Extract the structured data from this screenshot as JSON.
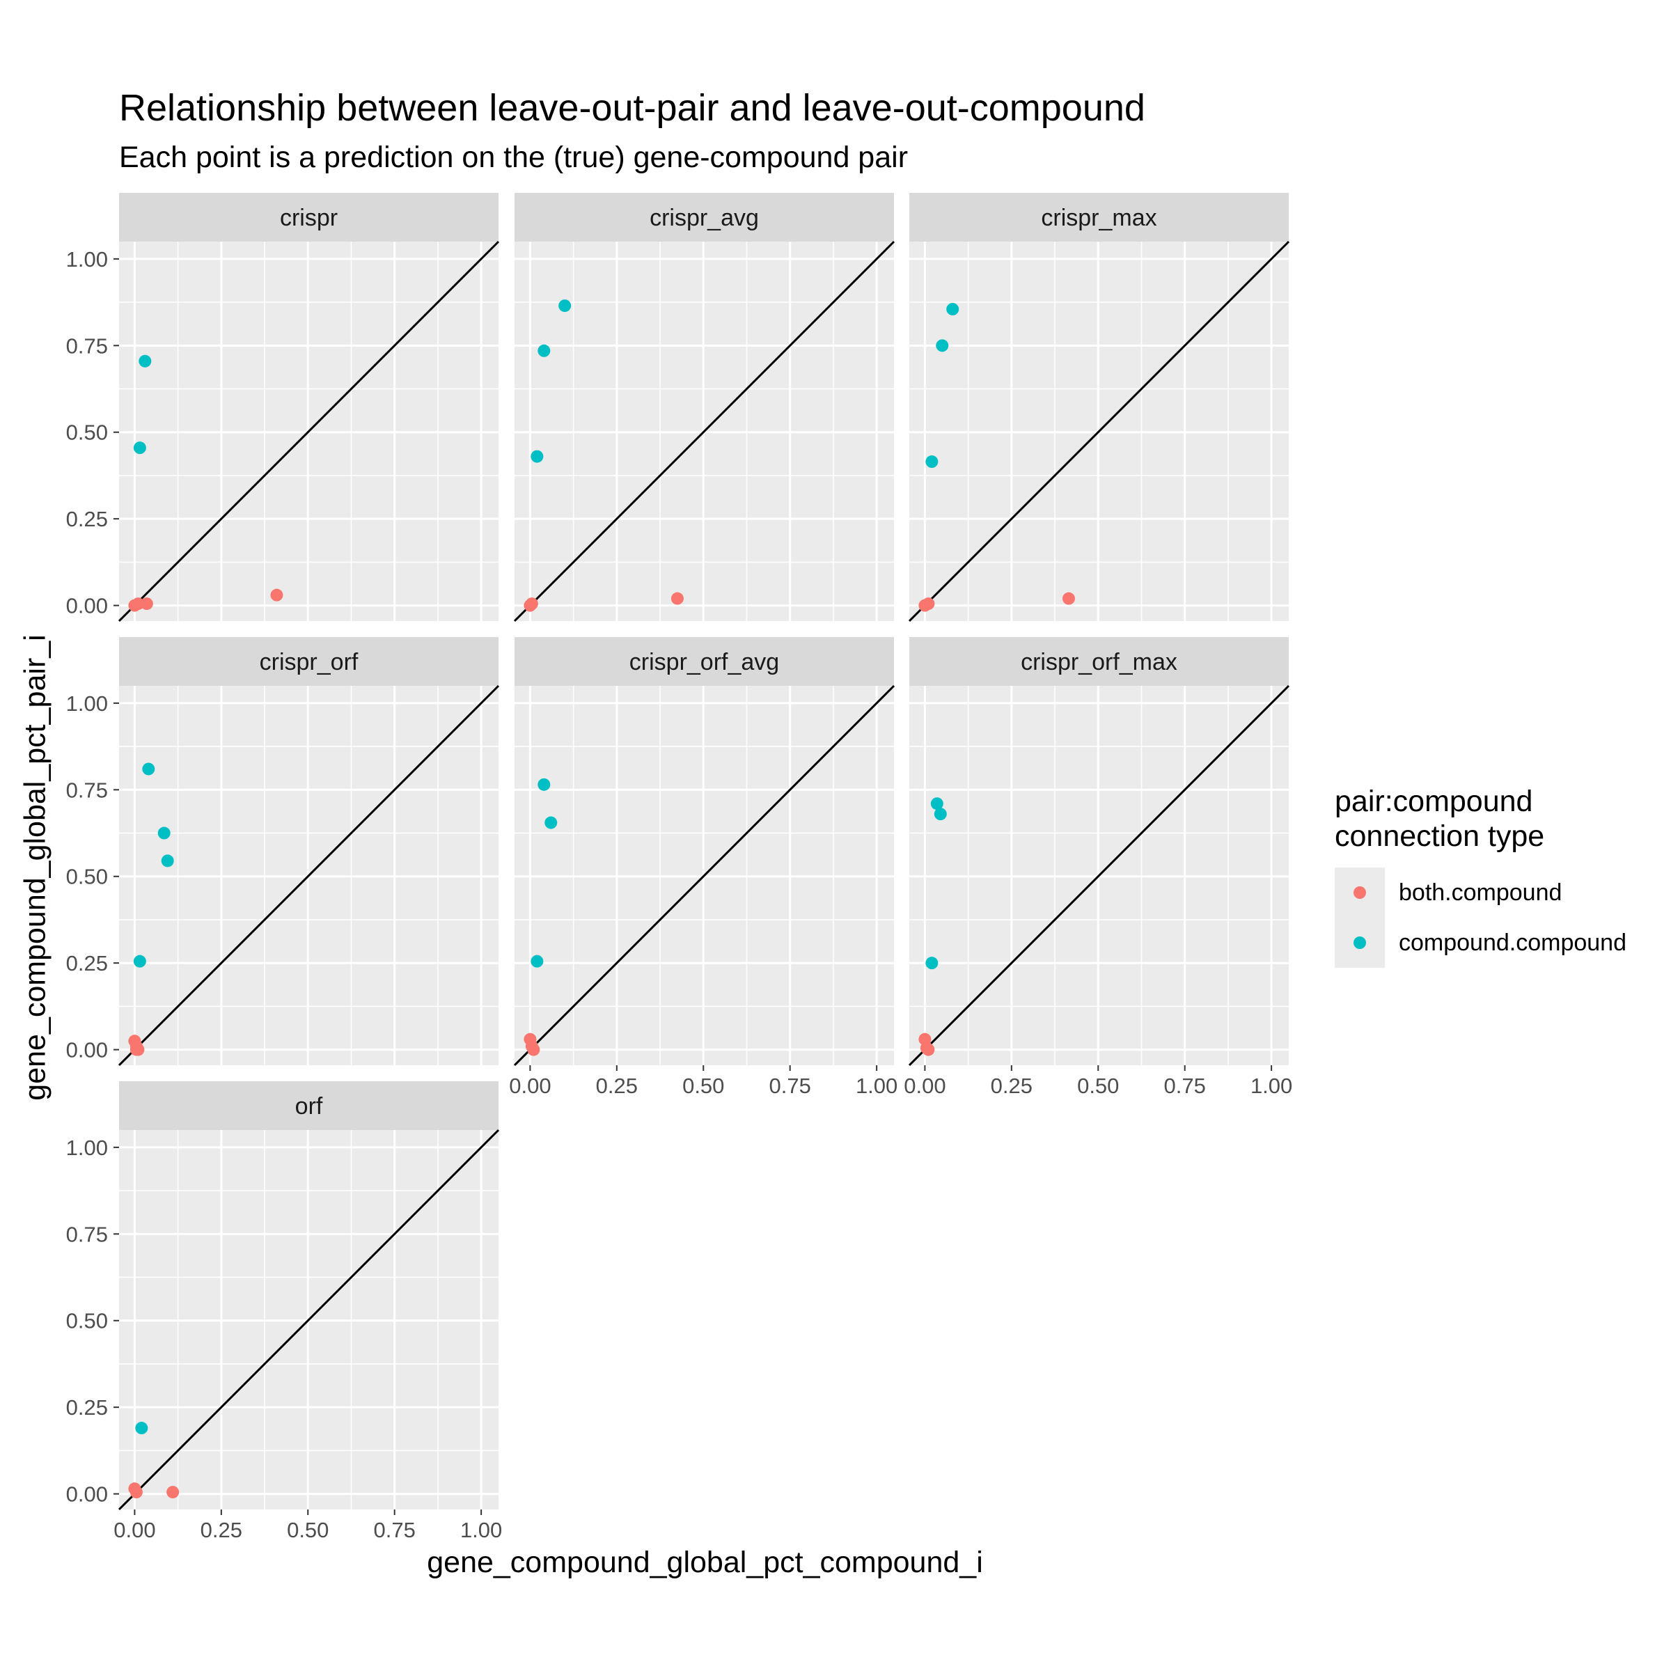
{
  "chart_data": {
    "type": "scatter",
    "title": "Relationship between leave-out-pair and leave-out-compound",
    "subtitle": "Each point is a prediction on the (true) gene-compound pair",
    "xlabel": "gene_compound_global_pct_compound_i",
    "ylabel": "gene_compound_global_pct_pair_i",
    "xlim": [
      0,
      1
    ],
    "ylim": [
      0,
      1
    ],
    "x_ticks": [
      "0.00",
      "0.25",
      "0.50",
      "0.75",
      "1.00"
    ],
    "y_ticks": [
      "0.00",
      "0.25",
      "0.50",
      "0.75",
      "1.00"
    ],
    "grid": true,
    "reference_line": "y = x",
    "legend": {
      "title_lines": [
        "pair:compound",
        "connection type"
      ],
      "placement": "right",
      "entries": [
        {
          "name": "both.compound",
          "color": "#f8766d"
        },
        {
          "name": "compound.compound",
          "color": "#00bfc4"
        }
      ]
    },
    "facets": [
      {
        "name": "crispr",
        "series": [
          {
            "name": "both.compound",
            "x": [
              0.0,
              0.01,
              0.035,
              0.41
            ],
            "y": [
              0.0,
              0.005,
              0.005,
              0.03
            ]
          },
          {
            "name": "compound.compound",
            "x": [
              0.015,
              0.03
            ],
            "y": [
              0.455,
              0.705
            ]
          }
        ]
      },
      {
        "name": "crispr_avg",
        "series": [
          {
            "name": "both.compound",
            "x": [
              0.0,
              0.005,
              0.425
            ],
            "y": [
              0.0,
              0.005,
              0.02
            ]
          },
          {
            "name": "compound.compound",
            "x": [
              0.02,
              0.04,
              0.1
            ],
            "y": [
              0.43,
              0.735,
              0.865
            ]
          }
        ]
      },
      {
        "name": "crispr_max",
        "series": [
          {
            "name": "both.compound",
            "x": [
              0.0,
              0.01,
              0.415
            ],
            "y": [
              0.0,
              0.005,
              0.02
            ]
          },
          {
            "name": "compound.compound",
            "x": [
              0.02,
              0.05,
              0.08
            ],
            "y": [
              0.415,
              0.75,
              0.855
            ]
          }
        ]
      },
      {
        "name": "crispr_orf",
        "series": [
          {
            "name": "both.compound",
            "x": [
              0.0,
              0.005,
              0.005,
              0.01
            ],
            "y": [
              0.025,
              0.01,
              0.0,
              0.0
            ]
          },
          {
            "name": "compound.compound",
            "x": [
              0.015,
              0.04,
              0.085,
              0.095
            ],
            "y": [
              0.255,
              0.81,
              0.625,
              0.545
            ]
          }
        ]
      },
      {
        "name": "crispr_orf_avg",
        "series": [
          {
            "name": "both.compound",
            "x": [
              0.0,
              0.005,
              0.01
            ],
            "y": [
              0.03,
              0.01,
              0.0
            ]
          },
          {
            "name": "compound.compound",
            "x": [
              0.02,
              0.04,
              0.06
            ],
            "y": [
              0.255,
              0.765,
              0.655
            ]
          }
        ]
      },
      {
        "name": "crispr_orf_max",
        "series": [
          {
            "name": "both.compound",
            "x": [
              0.0,
              0.005,
              0.01
            ],
            "y": [
              0.03,
              0.005,
              0.0
            ]
          },
          {
            "name": "compound.compound",
            "x": [
              0.02,
              0.035,
              0.045
            ],
            "y": [
              0.25,
              0.71,
              0.68
            ]
          }
        ]
      },
      {
        "name": "orf",
        "series": [
          {
            "name": "both.compound",
            "x": [
              0.0,
              0.005,
              0.11
            ],
            "y": [
              0.015,
              0.005,
              0.005
            ]
          },
          {
            "name": "compound.compound",
            "x": [
              0.02
            ],
            "y": [
              0.19
            ]
          }
        ]
      }
    ]
  }
}
